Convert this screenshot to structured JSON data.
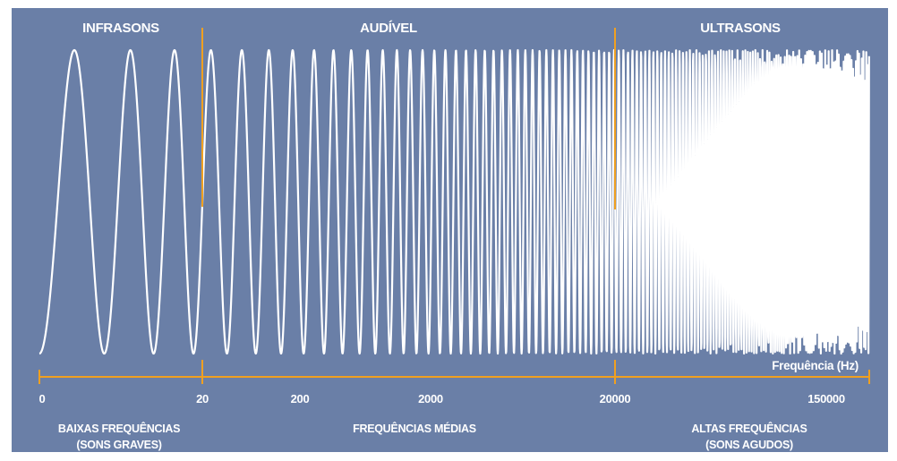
{
  "regions": {
    "infra": "INFRASONS",
    "audible": "AUDÍVEL",
    "ultra": "ULTRASONS"
  },
  "axis": {
    "title": "Frequência (Hz)",
    "ticks": [
      "0",
      "20",
      "200",
      "2000",
      "20000",
      "150000"
    ]
  },
  "bands": {
    "low_line1": "BAIXAS FREQUÊNCIAS",
    "low_line2": "(SONS GRAVES)",
    "mid": "FREQUÊNCIAS MÉDIAS",
    "high_line1": "ALTAS FREQUÊNCIAS",
    "high_line2": "(SONS AGUDOS)"
  },
  "colors": {
    "panel": "#6a7fa7",
    "wave": "#ffffff",
    "accent": "#f0a020"
  }
}
